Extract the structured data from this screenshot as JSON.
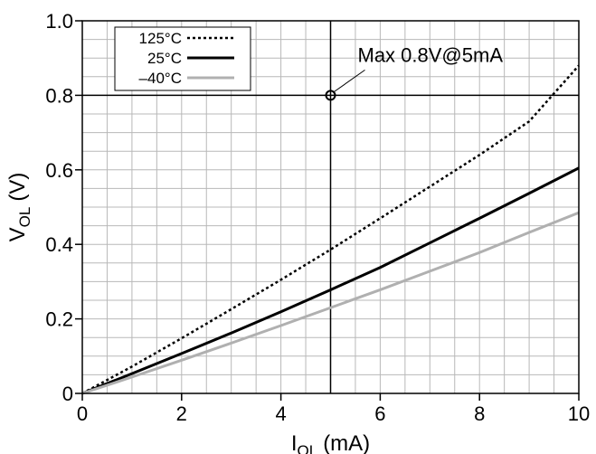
{
  "chart_data": {
    "type": "line",
    "x": [
      0,
      1,
      2,
      3,
      4,
      5,
      6,
      7,
      8,
      9,
      10
    ],
    "series": [
      {
        "name": "125°C",
        "style": "dotted",
        "color": "#000000",
        "values": [
          0,
          0.072,
          0.148,
          0.226,
          0.305,
          0.386,
          0.47,
          0.555,
          0.64,
          0.73,
          0.88
        ]
      },
      {
        "name": "25°C",
        "style": "solid",
        "color": "#000000",
        "values": [
          0,
          0.053,
          0.107,
          0.162,
          0.219,
          0.278,
          0.338,
          0.404,
          0.47,
          0.537,
          0.605
        ]
      },
      {
        "name": "–40°C",
        "style": "solid",
        "color": "#b0b0b0",
        "values": [
          0,
          0.044,
          0.089,
          0.135,
          0.182,
          0.23,
          0.278,
          0.328,
          0.378,
          0.432,
          0.485
        ]
      }
    ],
    "xlabel_main": "I",
    "xlabel_sub": "OL",
    "xlabel_unit": "(mA)",
    "ylabel_main": "V",
    "ylabel_sub": "OL",
    "ylabel_unit": "(V)",
    "xlim": [
      0,
      10
    ],
    "ylim": [
      0,
      1.0
    ],
    "xtick_labels": [
      "0",
      "2",
      "4",
      "6",
      "8",
      "10"
    ],
    "ytick_labels": [
      "0",
      "0.2",
      "0.4",
      "0.6",
      "0.8",
      "1.0"
    ],
    "grid": true,
    "legend_position": "top-left",
    "limit_lines": {
      "x": 5,
      "y": 0.8
    },
    "annotation": {
      "text": "Max 0.8V@5mA",
      "x": 5,
      "y": 0.8
    }
  }
}
